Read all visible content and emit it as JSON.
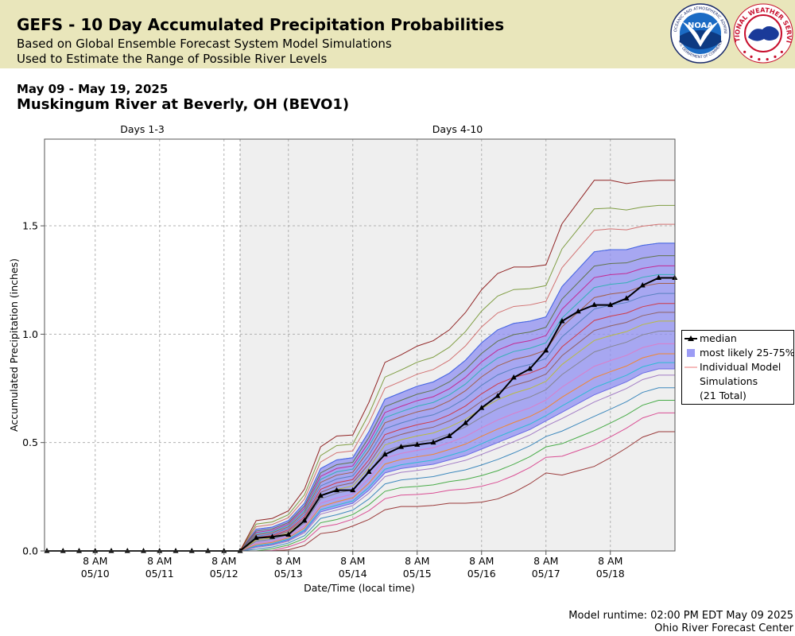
{
  "banner": {
    "title": "GEFS - 10 Day Accumulated Precipitation Probabilities",
    "subtitle1": "Based on Global Ensemble Forecast System Model Simulations",
    "subtitle2": "Used to Estimate the Range of Possible River Levels",
    "logo_left_text": "NATIONAL OCEANIC AND ATMOSPHERIC ADMINISTRATION",
    "logo_left_bottom": "U.S. DEPARTMENT OF COMMERCE",
    "logo_left_center": "NOAA",
    "logo_right_text": "NATIONAL WEATHER SERVICE",
    "logo_right_star_count": 6
  },
  "header": {
    "date_range": "May 09 - May 19, 2025",
    "station": "Muskingum River at Beverly, OH (BEVO1)"
  },
  "footer": {
    "runtime": "Model runtime: 02:00 PM EDT May 09 2025",
    "center": "Ohio River Forecast Center"
  },
  "legend": {
    "median": "median",
    "band": "most likely 25-75%",
    "individual_line1": "Individual Model",
    "individual_line2": "Simulations",
    "individual_line3": "(21 Total)"
  },
  "colors": {
    "banner_bg": "#e9e6bb",
    "shade_bg": "#efefef",
    "band_fill": "#8f8ff2",
    "band_edge": "#6a6ae6",
    "median_line": "#000000"
  },
  "chart_data": {
    "type": "line",
    "period_labels": [
      "Days 1-3",
      "Days 4-10"
    ],
    "period_split": "05/12 14:00",
    "xlabel": "Date/Time (local time)",
    "ylabel": "Accumulated Precipitation (inches)",
    "x_range": [
      "05/09 14:00",
      "05/19 08:00"
    ],
    "ylim": [
      0,
      1.9
    ],
    "yticks": [
      0.0,
      0.5,
      1.0,
      1.5
    ],
    "ytick_labels": [
      "0.0",
      "0.5",
      "1.0",
      "1.5"
    ],
    "xticks": [
      {
        "time": "05/10 08:00",
        "label1": "8 AM",
        "label2": "05/10"
      },
      {
        "time": "05/11 08:00",
        "label1": "8 AM",
        "label2": "05/11"
      },
      {
        "time": "05/12 08:00",
        "label1": "8 AM",
        "label2": "05/12"
      },
      {
        "time": "05/13 08:00",
        "label1": "8 AM",
        "label2": "05/13"
      },
      {
        "time": "05/14 08:00",
        "label1": "8 AM",
        "label2": "05/14"
      },
      {
        "time": "05/15 08:00",
        "label1": "8 AM",
        "label2": "05/15"
      },
      {
        "time": "05/16 08:00",
        "label1": "8 AM",
        "label2": "05/16"
      },
      {
        "time": "05/17 08:00",
        "label1": "8 AM",
        "label2": "05/17"
      },
      {
        "time": "05/18 08:00",
        "label1": "8 AM",
        "label2": "05/18"
      }
    ],
    "grid": true,
    "legend_position": "right",
    "median": {
      "name": "median",
      "x": [
        "05/09 14:00",
        "05/09 20:00",
        "05/10 02:00",
        "05/10 08:00",
        "05/10 14:00",
        "05/10 20:00",
        "05/11 02:00",
        "05/11 08:00",
        "05/11 14:00",
        "05/11 20:00",
        "05/12 02:00",
        "05/12 08:00",
        "05/12 14:00",
        "05/12 20:00",
        "05/13 02:00",
        "05/13 08:00",
        "05/13 14:00",
        "05/13 20:00",
        "05/14 02:00",
        "05/14 08:00",
        "05/14 14:00",
        "05/14 20:00",
        "05/15 02:00",
        "05/15 08:00",
        "05/15 14:00",
        "05/15 20:00",
        "05/16 02:00",
        "05/16 08:00",
        "05/16 14:00",
        "05/16 20:00",
        "05/17 02:00",
        "05/17 08:00",
        "05/17 14:00",
        "05/17 20:00",
        "05/18 02:00",
        "05/18 08:00",
        "05/18 14:00",
        "05/18 20:00",
        "05/19 02:00",
        "05/19 08:00"
      ],
      "y": [
        0,
        0,
        0,
        0,
        0,
        0,
        0,
        0,
        0,
        0,
        0,
        0,
        0,
        0.06,
        0.065,
        0.075,
        0.14,
        0.255,
        0.28,
        0.28,
        0.365,
        0.445,
        0.48,
        0.49,
        0.5,
        0.53,
        0.59,
        0.66,
        0.715,
        0.8,
        0.84,
        0.925,
        1.06,
        1.105,
        1.135,
        1.135,
        1.165,
        1.225,
        1.26,
        1.26
      ]
    },
    "band": {
      "name": "most likely 25-75%",
      "x": [
        "05/12 14:00",
        "05/12 20:00",
        "05/13 02:00",
        "05/13 08:00",
        "05/13 14:00",
        "05/13 20:00",
        "05/14 02:00",
        "05/14 08:00",
        "05/14 14:00",
        "05/14 20:00",
        "05/15 02:00",
        "05/15 08:00",
        "05/15 14:00",
        "05/15 20:00",
        "05/16 02:00",
        "05/16 08:00",
        "05/16 14:00",
        "05/16 20:00",
        "05/17 02:00",
        "05/17 08:00",
        "05/17 14:00",
        "05/17 20:00",
        "05/18 02:00",
        "05/18 08:00",
        "05/18 14:00",
        "05/18 20:00",
        "05/19 02:00",
        "05/19 08:00"
      ],
      "lower": [
        0,
        0.02,
        0.03,
        0.05,
        0.09,
        0.18,
        0.2,
        0.22,
        0.28,
        0.36,
        0.38,
        0.39,
        0.4,
        0.42,
        0.44,
        0.47,
        0.5,
        0.53,
        0.56,
        0.6,
        0.64,
        0.68,
        0.72,
        0.75,
        0.78,
        0.82,
        0.84,
        0.84
      ],
      "upper": [
        0,
        0.1,
        0.11,
        0.14,
        0.22,
        0.38,
        0.42,
        0.43,
        0.55,
        0.7,
        0.73,
        0.76,
        0.78,
        0.82,
        0.88,
        0.96,
        1.02,
        1.05,
        1.06,
        1.08,
        1.22,
        1.3,
        1.38,
        1.39,
        1.39,
        1.41,
        1.42,
        1.42
      ]
    },
    "individual_count": 21
  }
}
